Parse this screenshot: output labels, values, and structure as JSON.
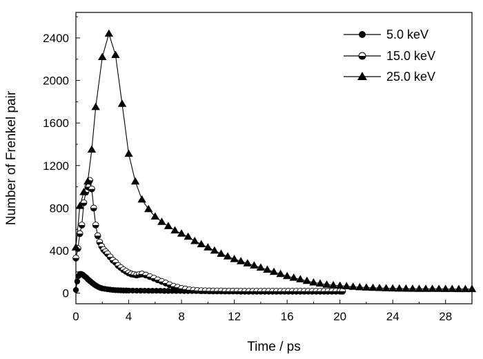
{
  "chart_data": {
    "type": "line",
    "xlabel": "Time / ps",
    "ylabel": "Number of Frenkel pair",
    "xlim": [
      0,
      30
    ],
    "ylim": [
      -100,
      2640
    ],
    "xticks": [
      0,
      4,
      8,
      12,
      16,
      20,
      24,
      28
    ],
    "yticks": [
      0,
      400,
      800,
      1200,
      1600,
      2000,
      2400
    ],
    "grid": false,
    "legend_position": "top-right",
    "series": [
      {
        "name": "5.0 keV",
        "marker": "filled-circle",
        "x": [
          0,
          0.1,
          0.2,
          0.3,
          0.4,
          0.5,
          0.6,
          0.7,
          0.8,
          0.9,
          1.0,
          1.1,
          1.2,
          1.3,
          1.4,
          1.5,
          1.6,
          1.7,
          1.8,
          1.9,
          2.0,
          2.2,
          2.4,
          2.6,
          2.8,
          3.0,
          3.2,
          3.4,
          3.6,
          3.8,
          4.0,
          4.3,
          4.6,
          4.9,
          5.2,
          5.5,
          5.8,
          6.1,
          6.4,
          6.7,
          7.0,
          7.3,
          7.6,
          7.9,
          8.2,
          8.5,
          8.8,
          9.1,
          9.4,
          9.7,
          10.0,
          10.3,
          10.6,
          10.9,
          11.2,
          11.5,
          11.8,
          12.1
        ],
        "y": [
          30,
          110,
          160,
          180,
          180,
          175,
          165,
          155,
          145,
          130,
          120,
          110,
          100,
          90,
          80,
          72,
          65,
          58,
          52,
          48,
          44,
          40,
          36,
          33,
          30,
          28,
          27,
          26,
          25,
          25,
          24,
          24,
          23,
          23,
          23,
          22,
          22,
          22,
          22,
          21,
          21,
          21,
          21,
          21,
          20,
          20,
          20,
          20,
          20,
          20,
          20,
          20,
          20,
          20,
          20,
          20,
          20,
          20
        ]
      },
      {
        "name": "15.0 keV",
        "marker": "half-filled-circle",
        "x": [
          0,
          0.15,
          0.3,
          0.45,
          0.6,
          0.75,
          0.9,
          1.05,
          1.2,
          1.35,
          1.5,
          1.65,
          1.8,
          1.95,
          2.1,
          2.25,
          2.4,
          2.6,
          2.8,
          3.0,
          3.2,
          3.4,
          3.6,
          3.8,
          4.0,
          4.2,
          4.4,
          4.6,
          4.8,
          5.0,
          5.3,
          5.6,
          5.9,
          6.2,
          6.5,
          6.8,
          7.1,
          7.4,
          7.7,
          8.0,
          8.3,
          8.6,
          8.9,
          9.2,
          9.5,
          9.8,
          10.1,
          10.4,
          10.7,
          11.0,
          11.3,
          11.6,
          11.9,
          12.2,
          12.5,
          12.8,
          13.1,
          13.4,
          13.7,
          14.0,
          14.3,
          14.6,
          14.9,
          15.2,
          15.5,
          15.8,
          16.1,
          16.4,
          16.7,
          17.0,
          17.3,
          17.6,
          17.9,
          18.2,
          18.5,
          18.8,
          19.1,
          19.4,
          19.7,
          20.0,
          20.2
        ],
        "y": [
          330,
          420,
          560,
          640,
          850,
          950,
          1000,
          1060,
          980,
          800,
          640,
          540,
          480,
          440,
          410,
          390,
          370,
          340,
          310,
          290,
          260,
          240,
          220,
          205,
          190,
          180,
          175,
          170,
          175,
          180,
          170,
          155,
          140,
          125,
          110,
          95,
          80,
          65,
          55,
          45,
          38,
          32,
          28,
          25,
          23,
          22,
          21,
          20,
          20,
          20,
          19,
          19,
          19,
          19,
          18,
          18,
          18,
          18,
          18,
          18,
          18,
          18,
          18,
          18,
          18,
          18,
          18,
          18,
          18,
          18,
          18,
          18,
          18,
          18,
          18,
          18,
          18,
          18,
          18,
          18,
          18
        ]
      },
      {
        "name": "25.0 keV",
        "marker": "filled-triangle",
        "x": [
          0,
          0.3,
          0.6,
          0.9,
          1.2,
          1.5,
          2.0,
          2.5,
          3.0,
          3.5,
          4.0,
          4.5,
          5.0,
          5.5,
          6.0,
          6.5,
          7.0,
          7.5,
          8.0,
          8.5,
          9.0,
          9.5,
          10.0,
          10.5,
          11.0,
          11.5,
          12.0,
          12.5,
          13.0,
          13.5,
          14.0,
          14.5,
          15.0,
          15.5,
          16.0,
          16.5,
          17.0,
          17.5,
          18.0,
          18.5,
          19.0,
          19.5,
          20.0,
          20.5,
          21.0,
          21.5,
          22.0,
          22.5,
          23.0,
          23.5,
          24.0,
          24.5,
          25.0,
          25.5,
          26.0,
          26.5,
          27.0,
          27.5,
          28.0,
          28.5,
          29.0,
          29.5,
          30.0
        ],
        "y": [
          430,
          820,
          950,
          1050,
          1350,
          1750,
          2220,
          2440,
          2240,
          1780,
          1310,
          1050,
          880,
          790,
          720,
          670,
          630,
          590,
          560,
          530,
          490,
          460,
          430,
          400,
          370,
          345,
          320,
          300,
          280,
          260,
          240,
          220,
          200,
          180,
          160,
          145,
          130,
          115,
          100,
          90,
          80,
          75,
          70,
          65,
          60,
          56,
          52,
          50,
          48,
          46,
          44,
          43,
          42,
          41,
          40,
          40,
          40,
          40,
          39,
          39,
          38,
          38,
          38
        ]
      }
    ]
  }
}
